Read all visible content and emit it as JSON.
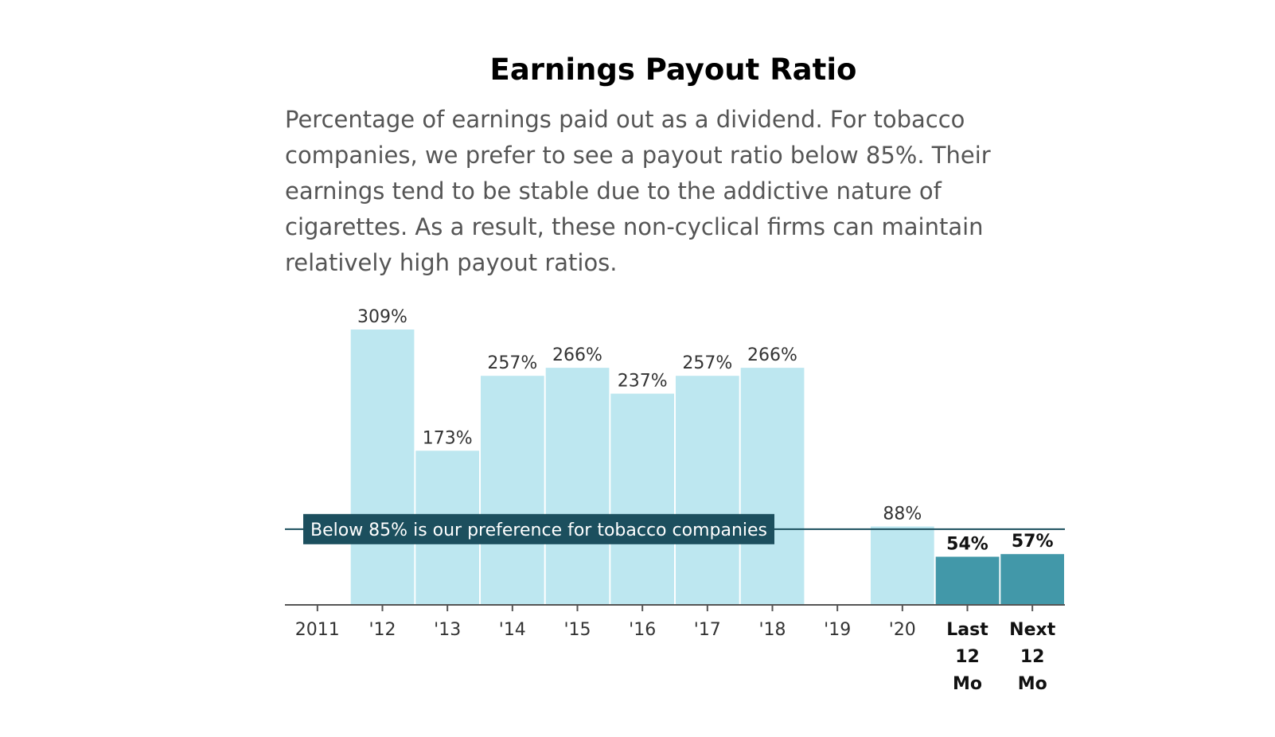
{
  "title": "Earnings Payout Ratio",
  "description": "Percentage of earnings paid out as a dividend. For tobacco companies, we prefer to see a payout ratio below 85%. Their earnings tend to be stable due to the addictive nature of cigarettes. As a result, these non-cyclical firms can maintain relatively high payout ratios.",
  "colors": {
    "bar_light": "#bde7f0",
    "bar_dark": "#4298a9",
    "reference": "#1c4f5e",
    "axis": "#555555"
  },
  "chart_data": {
    "type": "bar",
    "categories": [
      "2011",
      "'12",
      "'13",
      "'14",
      "'15",
      "'16",
      "'17",
      "'18",
      "'19",
      "'20",
      "Last 12 Mo",
      "Next 12 Mo"
    ],
    "values": [
      null,
      309,
      173,
      257,
      266,
      237,
      257,
      266,
      null,
      88,
      54,
      57
    ],
    "value_labels": [
      "",
      "309%",
      "173%",
      "257%",
      "266%",
      "237%",
      "257%",
      "266%",
      "",
      "88%",
      "54%",
      "57%"
    ],
    "highlighted": [
      false,
      false,
      false,
      false,
      false,
      false,
      false,
      false,
      false,
      false,
      true,
      true
    ],
    "reference_line": {
      "value": 85,
      "label": "Below 85% is our preference for tobacco companies"
    },
    "ylim": [
      0,
      309
    ]
  }
}
